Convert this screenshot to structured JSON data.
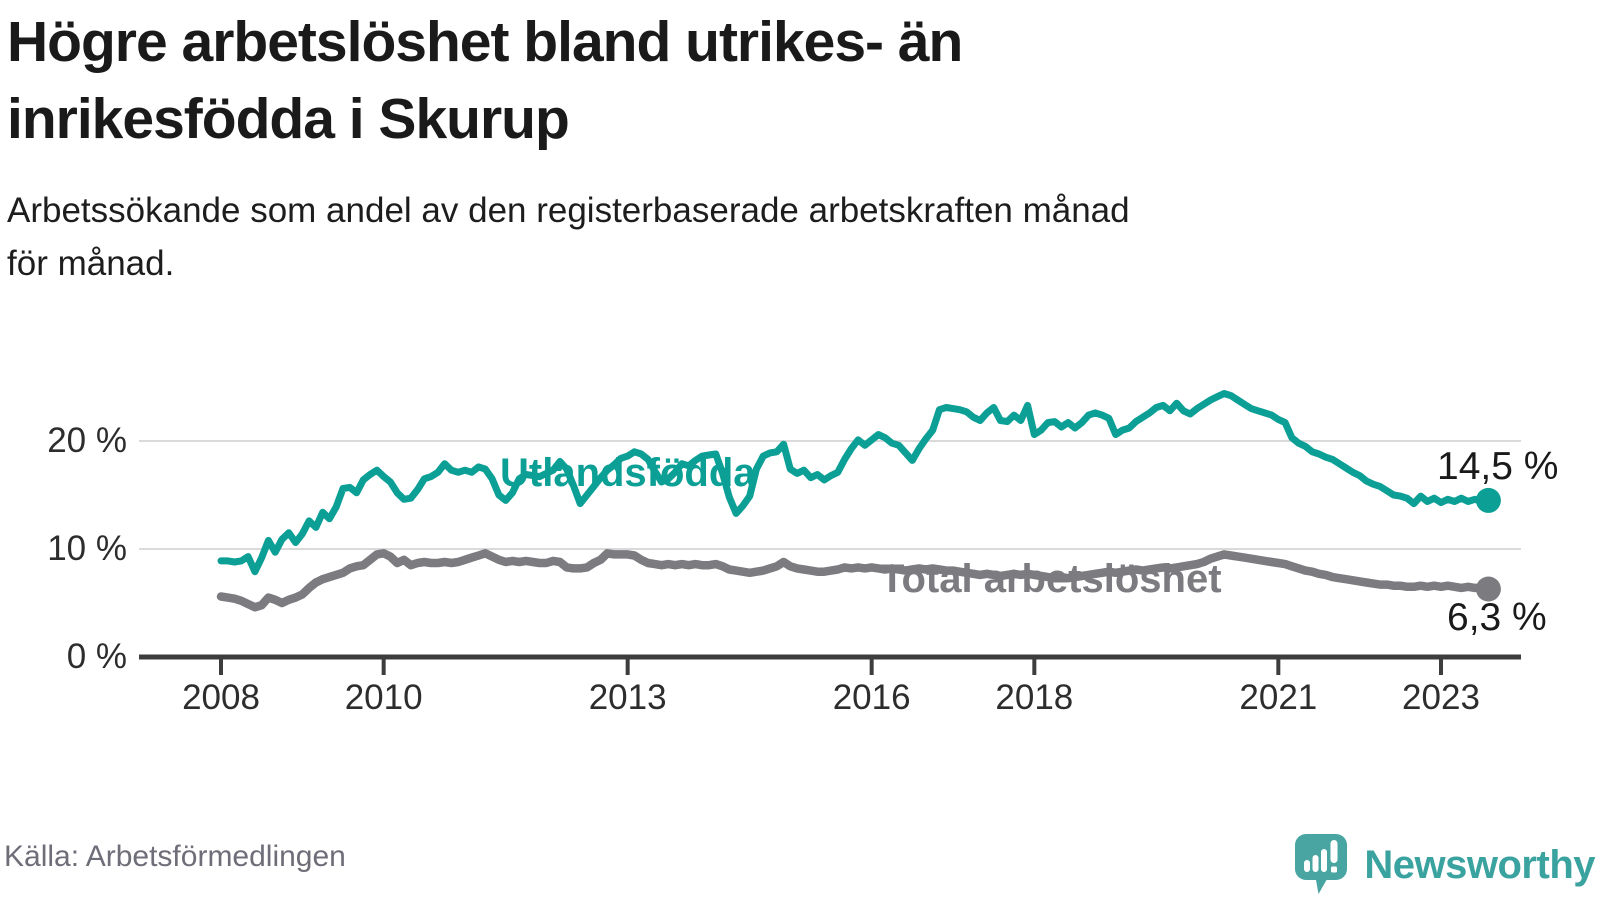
{
  "header": {
    "title": "Högre arbetslöshet bland utrikes- än\ninrikesfödda i Skurup",
    "subtitle": "Arbetssökande som andel av den registerbaserade arbetskraften månad\nför månad."
  },
  "source": {
    "label": "Källa: Arbetsförmedlingen"
  },
  "brand": {
    "name": "Newsworthy",
    "icon": "newsworthy-speech-bubble-bar-chart-icon"
  },
  "colors": {
    "foreign_line": "#0b9f95",
    "total_line": "#7b7b80",
    "grid": "#dadada",
    "axis": "#3d3d3d",
    "annotation_text": "#1a1a1a",
    "brand_teal": "#48a5a2"
  },
  "chart_data": {
    "type": "line",
    "title": "Högre arbetslöshet bland utrikes- än inrikesfödda i Skurup",
    "subtitle": "Arbetssökande som andel av den registerbaserade arbetskraften månad för månad.",
    "x": {
      "start_year": 2008,
      "start_month": 1,
      "frequency": "monthly",
      "points": 188,
      "end": "2023-08"
    },
    "x_ticks": [
      "2008",
      "2010",
      "2013",
      "2016",
      "2018",
      "2021",
      "2023"
    ],
    "y_ticks": [
      {
        "value": 0,
        "label": "0 %"
      },
      {
        "value": 10,
        "label": "10 %"
      },
      {
        "value": 20,
        "label": "20 %"
      }
    ],
    "ylim": [
      0,
      27.5
    ],
    "grid": "horizontal",
    "legend_position": "inline-labels",
    "series": [
      {
        "name": "Utlandsfödda",
        "color": "#0b9f95",
        "end_value": 14.5,
        "end_label": "14,5 %",
        "values": [
          8.9,
          8.9,
          8.8,
          8.9,
          9.3,
          7.9,
          9.2,
          10.8,
          9.7,
          10.9,
          11.5,
          10.6,
          11.4,
          12.6,
          12.0,
          13.4,
          12.8,
          13.9,
          15.6,
          15.7,
          15.2,
          16.4,
          16.9,
          17.3,
          16.7,
          16.2,
          15.2,
          14.6,
          14.7,
          15.5,
          16.5,
          16.7,
          17.1,
          17.9,
          17.3,
          17.1,
          17.3,
          17.1,
          17.6,
          17.4,
          16.5,
          15.0,
          14.5,
          15.2,
          16.5,
          16.9,
          16.8,
          16.7,
          17.0,
          17.3,
          18.1,
          17.4,
          15.9,
          14.2,
          15.0,
          15.8,
          16.6,
          17.3,
          17.8,
          18.4,
          18.6,
          19.0,
          18.8,
          18.3,
          17.2,
          16.2,
          16.5,
          17.1,
          17.9,
          17.7,
          18.2,
          18.6,
          18.7,
          18.8,
          17.0,
          14.8,
          13.3,
          14.0,
          14.9,
          17.4,
          18.6,
          18.9,
          19.0,
          19.7,
          17.4,
          17.0,
          17.3,
          16.6,
          16.9,
          16.4,
          16.8,
          17.1,
          18.3,
          19.3,
          20.1,
          19.6,
          20.1,
          20.6,
          20.3,
          19.8,
          19.6,
          18.9,
          18.2,
          19.3,
          20.2,
          21.0,
          22.9,
          23.1,
          23.0,
          22.9,
          22.7,
          22.2,
          21.9,
          22.6,
          23.1,
          21.9,
          21.8,
          22.4,
          21.9,
          23.3,
          20.6,
          21.0,
          21.7,
          21.8,
          21.3,
          21.7,
          21.2,
          21.7,
          22.4,
          22.6,
          22.4,
          22.1,
          20.6,
          21.0,
          21.2,
          21.8,
          22.2,
          22.6,
          23.1,
          23.3,
          22.8,
          23.5,
          22.8,
          22.5,
          23.0,
          23.4,
          23.8,
          24.1,
          24.4,
          24.2,
          23.8,
          23.4,
          23.0,
          22.8,
          22.6,
          22.4,
          22.0,
          21.7,
          20.3,
          19.8,
          19.5,
          19.0,
          18.8,
          18.5,
          18.3,
          17.9,
          17.5,
          17.1,
          16.8,
          16.3,
          16.0,
          15.8,
          15.4,
          15.0,
          14.9,
          14.7,
          14.2,
          14.9,
          14.4,
          14.7,
          14.3,
          14.6,
          14.4,
          14.7,
          14.4,
          14.6,
          14.4,
          14.5
        ]
      },
      {
        "name": "Total arbetslöshet",
        "color": "#7b7b80",
        "end_value": 6.3,
        "end_label": "6,3 %",
        "values": [
          5.6,
          5.5,
          5.4,
          5.2,
          4.9,
          4.6,
          4.8,
          5.5,
          5.3,
          5.0,
          5.3,
          5.5,
          5.8,
          6.4,
          6.9,
          7.2,
          7.4,
          7.6,
          7.8,
          8.2,
          8.4,
          8.5,
          9.0,
          9.5,
          9.6,
          9.3,
          8.7,
          9.0,
          8.5,
          8.7,
          8.8,
          8.7,
          8.7,
          8.8,
          8.7,
          8.8,
          9.0,
          9.2,
          9.4,
          9.6,
          9.3,
          9.0,
          8.8,
          8.9,
          8.8,
          8.9,
          8.8,
          8.7,
          8.7,
          8.9,
          8.8,
          8.3,
          8.2,
          8.2,
          8.3,
          8.7,
          9.0,
          9.6,
          9.5,
          9.5,
          9.5,
          9.4,
          9.0,
          8.7,
          8.6,
          8.5,
          8.6,
          8.5,
          8.6,
          8.5,
          8.6,
          8.5,
          8.5,
          8.6,
          8.4,
          8.1,
          8.0,
          7.9,
          7.8,
          7.9,
          8.0,
          8.2,
          8.4,
          8.8,
          8.4,
          8.2,
          8.1,
          8.0,
          7.9,
          7.9,
          8.0,
          8.1,
          8.3,
          8.2,
          8.3,
          8.2,
          8.3,
          8.2,
          8.1,
          8.2,
          8.1,
          8.0,
          8.1,
          8.2,
          8.1,
          8.2,
          8.1,
          8.0,
          8.0,
          7.9,
          7.8,
          7.7,
          7.6,
          7.7,
          7.6,
          7.5,
          7.6,
          7.7,
          7.6,
          7.7,
          7.6,
          7.5,
          7.4,
          7.3,
          7.4,
          7.3,
          7.4,
          7.5,
          7.6,
          7.7,
          7.8,
          7.9,
          7.8,
          7.9,
          8.0,
          8.1,
          8.0,
          8.1,
          8.2,
          8.3,
          8.2,
          8.3,
          8.4,
          8.5,
          8.6,
          8.8,
          9.1,
          9.3,
          9.5,
          9.4,
          9.3,
          9.2,
          9.1,
          9.0,
          8.9,
          8.8,
          8.7,
          8.6,
          8.4,
          8.2,
          8.0,
          7.9,
          7.7,
          7.6,
          7.4,
          7.3,
          7.2,
          7.1,
          7.0,
          6.9,
          6.8,
          6.7,
          6.7,
          6.6,
          6.6,
          6.5,
          6.5,
          6.6,
          6.5,
          6.6,
          6.5,
          6.6,
          6.5,
          6.4,
          6.5,
          6.4,
          6.4,
          6.3
        ]
      }
    ]
  }
}
